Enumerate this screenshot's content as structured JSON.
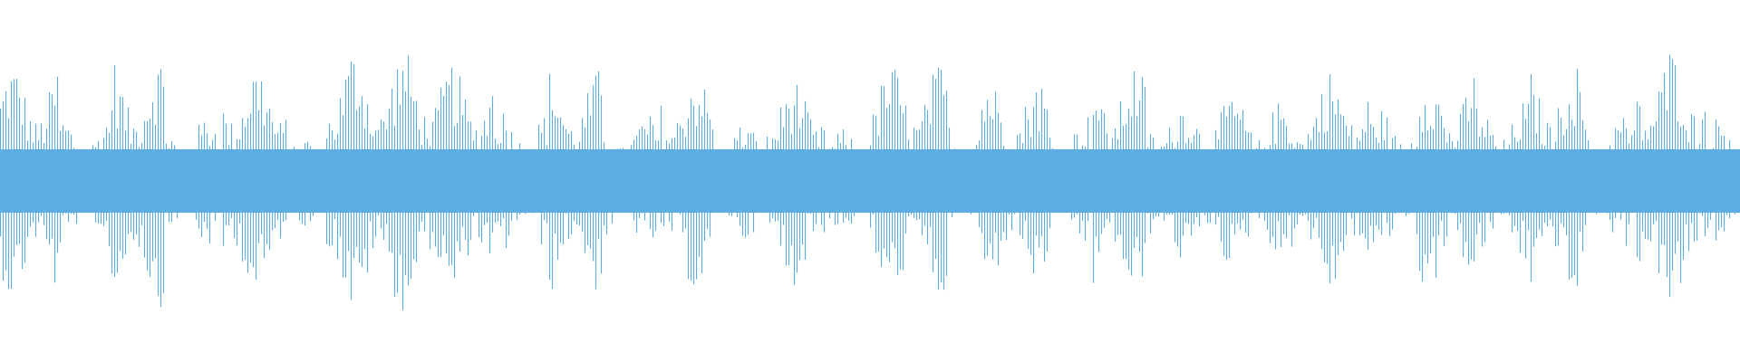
{
  "chart_data": {
    "type": "waveform",
    "title": "",
    "xlabel": "",
    "ylabel": "",
    "axes_visible": false,
    "grid": false,
    "color": "#5DADE2",
    "sample_count": 640,
    "ylim": [
      -1,
      1
    ],
    "core_amplitude": 0.25,
    "segments": [
      {
        "start": 0,
        "end": 22,
        "peak": 0.8
      },
      {
        "start": 22,
        "end": 41,
        "peak": 0.45
      },
      {
        "start": 41,
        "end": 61,
        "peak": 0.85
      },
      {
        "start": 61,
        "end": 82,
        "peak": 0.45
      },
      {
        "start": 82,
        "end": 106,
        "peak": 0.8
      },
      {
        "start": 106,
        "end": 120,
        "peak": 0.3
      },
      {
        "start": 120,
        "end": 159,
        "peak": 0.9
      },
      {
        "start": 159,
        "end": 182,
        "peak": 0.8
      },
      {
        "start": 182,
        "end": 202,
        "peak": 0.5
      },
      {
        "start": 202,
        "end": 222,
        "peak": 0.75
      },
      {
        "start": 222,
        "end": 243,
        "peak": 0.45
      },
      {
        "start": 243,
        "end": 263,
        "peak": 0.75
      },
      {
        "start": 263,
        "end": 282,
        "peak": 0.4
      },
      {
        "start": 282,
        "end": 304,
        "peak": 0.7
      },
      {
        "start": 304,
        "end": 320,
        "peak": 0.35
      },
      {
        "start": 320,
        "end": 349,
        "peak": 0.8
      },
      {
        "start": 349,
        "end": 361,
        "peak": 0.45
      },
      {
        "start": 361,
        "end": 386,
        "peak": 0.7
      },
      {
        "start": 386,
        "end": 402,
        "peak": 0.45
      },
      {
        "start": 402,
        "end": 422,
        "peak": 0.8
      },
      {
        "start": 422,
        "end": 441,
        "peak": 0.55
      },
      {
        "start": 441,
        "end": 461,
        "peak": 0.6
      },
      {
        "start": 461,
        "end": 481,
        "peak": 0.55
      },
      {
        "start": 481,
        "end": 504,
        "peak": 0.75
      },
      {
        "start": 504,
        "end": 522,
        "peak": 0.5
      },
      {
        "start": 522,
        "end": 543,
        "peak": 0.75
      },
      {
        "start": 543,
        "end": 563,
        "peak": 0.55
      },
      {
        "start": 563,
        "end": 583,
        "peak": 0.8
      },
      {
        "start": 583,
        "end": 602,
        "peak": 0.45
      },
      {
        "start": 602,
        "end": 628,
        "peak": 0.9
      },
      {
        "start": 628,
        "end": 640,
        "peak": 0.45
      }
    ]
  }
}
